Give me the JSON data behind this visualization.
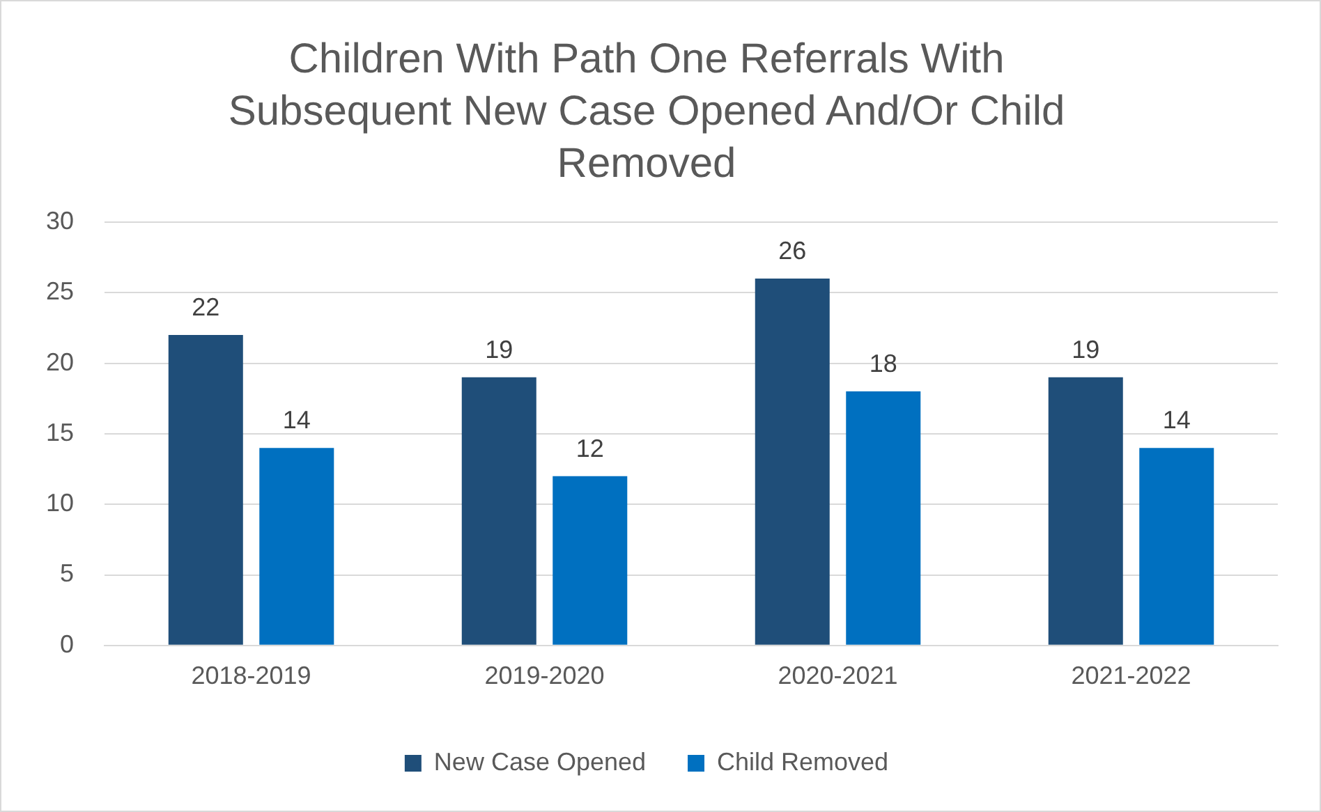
{
  "chart_data": {
    "type": "bar",
    "title": "Children With Path One Referrals With Subsequent New Case Opened And/Or Child Removed",
    "categories": [
      "2018-2019",
      "2019-2020",
      "2020-2021",
      "2021-2022"
    ],
    "series": [
      {
        "name": "New Case Opened",
        "color": "#1f4e79",
        "values": [
          22,
          19,
          26,
          19
        ]
      },
      {
        "name": "Child Removed",
        "color": "#0070c0",
        "values": [
          14,
          12,
          18,
          14
        ]
      }
    ],
    "ylim": [
      0,
      30
    ],
    "yticks": [
      0,
      5,
      10,
      15,
      20,
      25,
      30
    ],
    "grid": "y",
    "legend": "bottom",
    "data_labels": true
  }
}
